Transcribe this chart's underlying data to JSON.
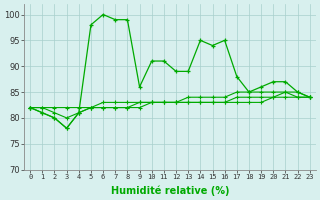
{
  "xlabel": "Humidité relative (%)",
  "ylabel": "",
  "xlim": [
    -0.5,
    23.5
  ],
  "ylim": [
    70,
    102
  ],
  "yticks": [
    70,
    75,
    80,
    85,
    90,
    95,
    100
  ],
  "xticks": [
    0,
    1,
    2,
    3,
    4,
    5,
    6,
    7,
    8,
    9,
    10,
    11,
    12,
    13,
    14,
    15,
    16,
    17,
    18,
    19,
    20,
    21,
    22,
    23
  ],
  "background_color": "#d8f0ee",
  "grid_color": "#a8d0cc",
  "line_color": "#00aa00",
  "line1": [
    82,
    81,
    80,
    78,
    81,
    98,
    100,
    99,
    99,
    86,
    91,
    91,
    89,
    89,
    95,
    94,
    95,
    88,
    85,
    86,
    87,
    87,
    85,
    84
  ],
  "line2": [
    82,
    81,
    80,
    78,
    81,
    82,
    82,
    82,
    82,
    83,
    83,
    83,
    83,
    84,
    84,
    84,
    84,
    85,
    85,
    85,
    85,
    85,
    85,
    84
  ],
  "line3": [
    82,
    82,
    81,
    80,
    81,
    82,
    83,
    83,
    83,
    83,
    83,
    83,
    83,
    83,
    83,
    83,
    83,
    84,
    84,
    84,
    84,
    85,
    84,
    84
  ],
  "line4": [
    82,
    82,
    82,
    82,
    82,
    82,
    82,
    82,
    82,
    82,
    83,
    83,
    83,
    83,
    83,
    83,
    83,
    83,
    83,
    83,
    84,
    84,
    84,
    84
  ],
  "xlabel_fontsize": 7,
  "tick_fontsize": 5,
  "ytick_fontsize": 6
}
